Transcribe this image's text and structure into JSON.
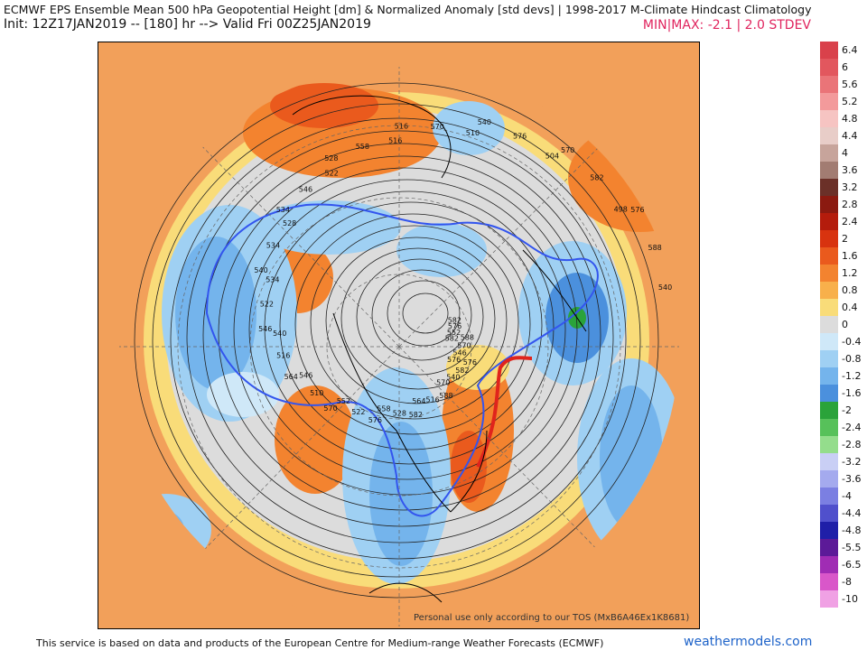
{
  "header": {
    "title": "ECMWF EPS Ensemble Mean 500 hPa Geopotential Height [dm] & Normalized Anomaly [std devs] | 1998-2017 M-Climate Hindcast Climatology",
    "init": "Init: 12Z17JAN2019 -- [180] hr --> Valid Fri 00Z25JAN2019",
    "minmax": "MIN|MAX: -2.1 | 2.0 STDEV"
  },
  "legend": {
    "items": [
      {
        "label": "6.4",
        "color": "#d9414b"
      },
      {
        "label": "6",
        "color": "#e2575e"
      },
      {
        "label": "5.6",
        "color": "#ea7478"
      },
      {
        "label": "5.2",
        "color": "#f39a9b"
      },
      {
        "label": "4.8",
        "color": "#f6c4c2"
      },
      {
        "label": "4.4",
        "color": "#e8cdc8"
      },
      {
        "label": "4",
        "color": "#c7a49b"
      },
      {
        "label": "3.6",
        "color": "#a27c72"
      },
      {
        "label": "3.2",
        "color": "#6b3028"
      },
      {
        "label": "2.8",
        "color": "#8b1a10"
      },
      {
        "label": "2.4",
        "color": "#b41c0c"
      },
      {
        "label": "2",
        "color": "#d8330f"
      },
      {
        "label": "1.6",
        "color": "#ea5a1d"
      },
      {
        "label": "1.2",
        "color": "#f3832f"
      },
      {
        "label": "0.8",
        "color": "#f8b04b"
      },
      {
        "label": "0.4",
        "color": "#f9dc79"
      },
      {
        "label": "0",
        "color": "#dcdcdc"
      },
      {
        "label": "-0.4",
        "color": "#cfe8f8"
      },
      {
        "label": "-0.8",
        "color": "#9fd0f3"
      },
      {
        "label": "-1.2",
        "color": "#74b4ec"
      },
      {
        "label": "-1.6",
        "color": "#4b90dd"
      },
      {
        "label": "-2",
        "color": "#2aa33a"
      },
      {
        "label": "-2.4",
        "color": "#57c15a"
      },
      {
        "label": "-2.8",
        "color": "#94dd8c"
      },
      {
        "label": "-3.2",
        "color": "#c9cff5"
      },
      {
        "label": "-3.6",
        "color": "#a4aaee"
      },
      {
        "label": "-4",
        "color": "#7b7fe2"
      },
      {
        "label": "-4.4",
        "color": "#5050cc"
      },
      {
        "label": "-4.8",
        "color": "#1f1fa8"
      },
      {
        "label": "-5.5",
        "color": "#5c1a98"
      },
      {
        "label": "-6.5",
        "color": "#a02cb4"
      },
      {
        "label": "-8",
        "color": "#d957c9"
      },
      {
        "label": "-10",
        "color": "#f0a1e4"
      }
    ]
  },
  "map": {
    "contour_labels": [
      "582",
      "576",
      "570",
      "564",
      "558",
      "552",
      "546",
      "540",
      "534",
      "528",
      "522",
      "516",
      "510",
      "504",
      "498",
      "540",
      "552",
      "546",
      "540",
      "516",
      "528",
      "522",
      "510",
      "516",
      "522",
      "534",
      "546",
      "558",
      "570",
      "576",
      "582",
      "588",
      "576",
      "570",
      "582",
      "588",
      "582",
      "576",
      "570",
      "564",
      "546",
      "540",
      "534",
      "528",
      "516",
      "540",
      "570",
      "576",
      "582",
      "588",
      "576"
    ]
  },
  "footer": {
    "service_text": "This service is based on data and products of the European Centre for Medium-range Weather Forecasts (ECMWF)",
    "brand": "weathermodels.com",
    "personal_use": "Personal use only according to our TOS (MxB6A46Ex1K8681)"
  }
}
